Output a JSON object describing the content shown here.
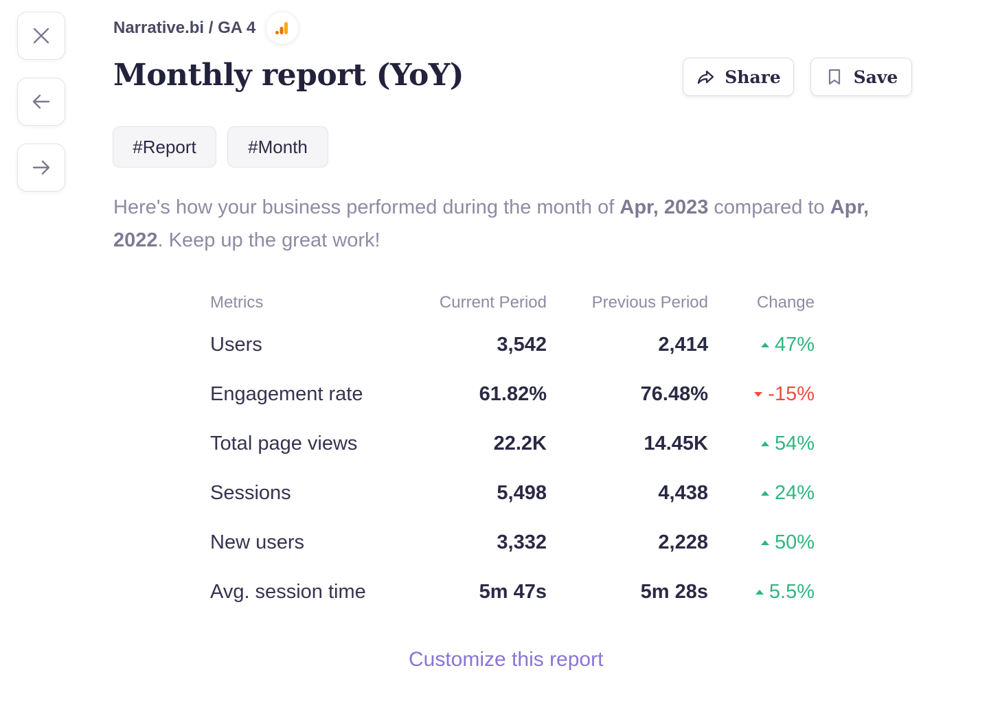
{
  "nav": {
    "close_icon": "close-icon",
    "back_icon": "arrow-left-icon",
    "forward_icon": "arrow-right-icon"
  },
  "breadcrumb": {
    "text": "Narrative.bi / GA 4",
    "icon": "google-analytics-icon"
  },
  "header": {
    "title": "Monthly report (YoY)",
    "share_label": "Share",
    "save_label": "Save"
  },
  "tags": [
    "#Report",
    "#Month"
  ],
  "summary": {
    "part1": "Here's how your business performed during the month of ",
    "current_period": "Apr, 2023",
    "part2": " compared to ",
    "previous_period": "Apr, 2022",
    "part3": ". Keep up the great work!"
  },
  "table": {
    "columns": [
      "Metrics",
      "Current Period",
      "Previous Period",
      "Change"
    ],
    "rows": [
      {
        "metric": "Users",
        "current": "3,542",
        "previous": "2,414",
        "change": "47%",
        "direction": "up"
      },
      {
        "metric": "Engagement rate",
        "current": "61.82%",
        "previous": "76.48%",
        "change": "-15%",
        "direction": "down"
      },
      {
        "metric": "Total page views",
        "current": "22.2K",
        "previous": "14.45K",
        "change": "54%",
        "direction": "up"
      },
      {
        "metric": "Sessions",
        "current": "5,498",
        "previous": "4,438",
        "change": "24%",
        "direction": "up"
      },
      {
        "metric": "New users",
        "current": "3,332",
        "previous": "2,228",
        "change": "50%",
        "direction": "up"
      },
      {
        "metric": "Avg. session time",
        "current": "5m 47s",
        "previous": "5m 28s",
        "change": "5.5%",
        "direction": "up"
      }
    ]
  },
  "footer": {
    "customize_label": "Customize this report"
  },
  "colors": {
    "positive": "#2fb67e",
    "negative": "#ef4c3f",
    "link": "#8a74d6",
    "ga_orange": "#f9ab00",
    "ga_dark_orange": "#e37400"
  }
}
